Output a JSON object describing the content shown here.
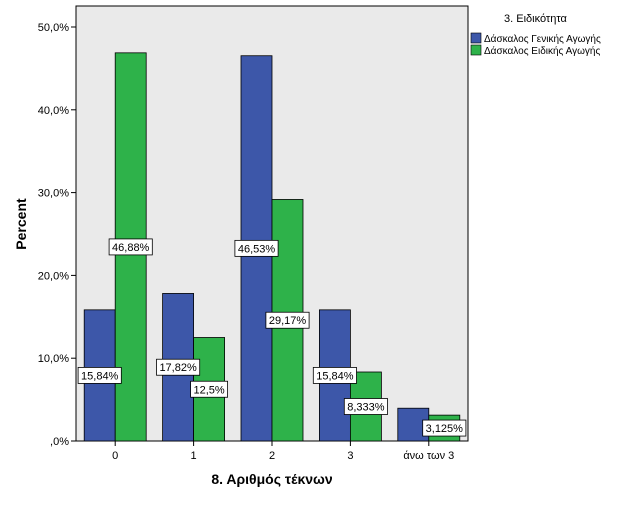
{
  "chart_data": {
    "type": "bar",
    "xlabel": "8. Αριθμός τέκνων",
    "ylabel": "Percent",
    "categories": [
      "0",
      "1",
      "2",
      "3",
      "άνω των 3"
    ],
    "ylim": [
      0,
      50
    ],
    "yticks": [
      0,
      10,
      20,
      30,
      40,
      50
    ],
    "ytick_labels": [
      ",0%",
      "10,0%",
      "20,0%",
      "30,0%",
      "40,0%",
      "50,0%"
    ],
    "grid": false,
    "legend": {
      "title": "3. Ειδικότητα",
      "placement": "top-right, outside plot"
    },
    "series": [
      {
        "name": "Δάσκαλος Γενικής Αγωγής",
        "color": "#3D57A9",
        "values": [
          15.84,
          17.82,
          46.53,
          15.84,
          3.96
        ],
        "labels": [
          "15,84%",
          "17,82%",
          "46,53%",
          "15,84%",
          ""
        ]
      },
      {
        "name": "Δάσκαλος Ειδικής Αγωγής",
        "color": "#2EB24A",
        "values": [
          46.88,
          12.5,
          29.17,
          8.333,
          3.125
        ],
        "labels": [
          "46,88%",
          "12,5%",
          "29,17%",
          "8,333%",
          "3,125%"
        ]
      }
    ],
    "plot_background": "#EAEAEA"
  }
}
